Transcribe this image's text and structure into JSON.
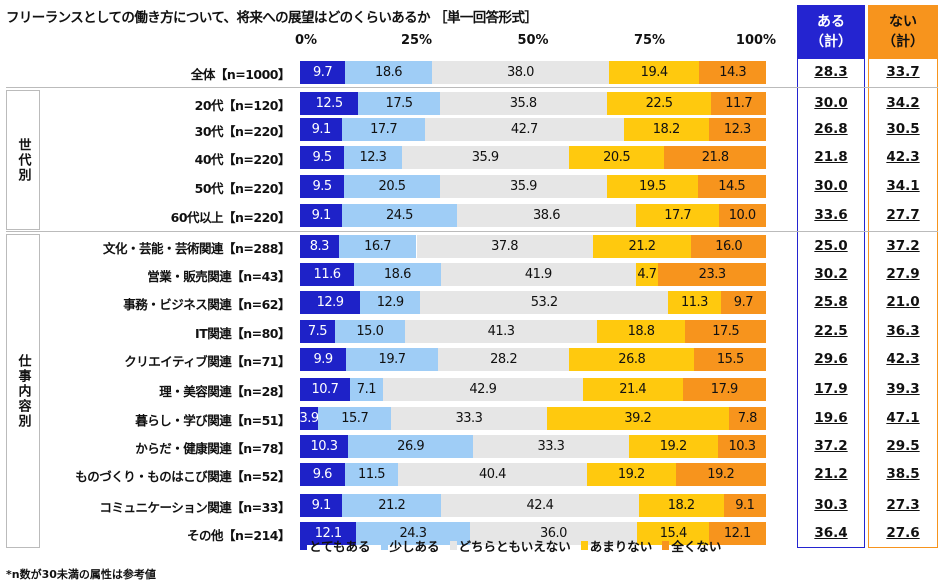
{
  "chart_data": {
    "type": "bar",
    "orientation": "horizontal-stacked-100",
    "title": "フリーランスとしての働き方について、将来への展望はどのくらいあるか ［単一回答形式］",
    "x_ticks": [
      "0%",
      "25%",
      "50%",
      "75%",
      "100%"
    ],
    "xlim": [
      0,
      100
    ],
    "legend_position": "bottom",
    "series_names": [
      "とてもある",
      "少しある",
      "どちらともいえない",
      "あまりない",
      "全くない"
    ],
    "colors": [
      "#1e22c8",
      "#9fcdf6",
      "#e6e6e6",
      "#ffc90e",
      "#f7941d"
    ],
    "summary_headers": {
      "aru": [
        "ある",
        "（計）"
      ],
      "nai": [
        "ない",
        "（計）"
      ]
    },
    "summary_colors": {
      "aru": "#2424d0",
      "nai": "#f7941d"
    },
    "groups": [
      {
        "label": "世代別",
        "chars": [
          "世",
          "代",
          "別"
        ]
      },
      {
        "label": "仕事内容別",
        "chars": [
          "仕",
          "事",
          "内",
          "容",
          "別"
        ]
      }
    ],
    "rows": [
      {
        "label": "全体【n=1000】",
        "values": [
          9.7,
          18.6,
          38.0,
          19.4,
          14.3
        ],
        "aru": "28.3",
        "nai": "33.7"
      },
      {
        "label": "20代【n=120】",
        "values": [
          12.5,
          17.5,
          35.8,
          22.5,
          11.7
        ],
        "aru": "30.0",
        "nai": "34.2"
      },
      {
        "label": "30代【n=220】",
        "values": [
          9.1,
          17.7,
          42.7,
          18.2,
          12.3
        ],
        "aru": "26.8",
        "nai": "30.5"
      },
      {
        "label": "40代【n=220】",
        "values": [
          9.5,
          12.3,
          35.9,
          20.5,
          21.8
        ],
        "aru": "21.8",
        "nai": "42.3"
      },
      {
        "label": "50代【n=220】",
        "values": [
          9.5,
          20.5,
          35.9,
          19.5,
          14.5
        ],
        "aru": "30.0",
        "nai": "34.1"
      },
      {
        "label": "60代以上【n=220】",
        "values": [
          9.1,
          24.5,
          38.6,
          17.7,
          10.0
        ],
        "aru": "33.6",
        "nai": "27.7"
      },
      {
        "label": "文化・芸能・芸術関連【n=288】",
        "values": [
          8.3,
          16.7,
          37.8,
          21.2,
          16.0
        ],
        "aru": "25.0",
        "nai": "37.2"
      },
      {
        "label": "営業・販売関連【n=43】",
        "values": [
          11.6,
          18.6,
          41.9,
          4.7,
          23.3
        ],
        "aru": "30.2",
        "nai": "27.9"
      },
      {
        "label": "事務・ビジネス関連【n=62】",
        "values": [
          12.9,
          12.9,
          53.2,
          11.3,
          9.7
        ],
        "aru": "25.8",
        "nai": "21.0"
      },
      {
        "label": "IT関連【n=80】",
        "values": [
          7.5,
          15.0,
          41.3,
          18.8,
          17.5
        ],
        "aru": "22.5",
        "nai": "36.3"
      },
      {
        "label": "クリエイティブ関連【n=71】",
        "values": [
          9.9,
          19.7,
          28.2,
          26.8,
          15.5
        ],
        "aru": "29.6",
        "nai": "42.3"
      },
      {
        "label": "理・美容関連【n=28】",
        "values": [
          10.7,
          7.1,
          42.9,
          21.4,
          17.9
        ],
        "aru": "17.9",
        "nai": "39.3"
      },
      {
        "label": "暮らし・学び関連【n=51】",
        "values": [
          3.9,
          15.7,
          33.3,
          39.2,
          7.8
        ],
        "aru": "19.6",
        "nai": "47.1"
      },
      {
        "label": "からだ・健康関連【n=78】",
        "values": [
          10.3,
          26.9,
          33.3,
          19.2,
          10.3
        ],
        "aru": "37.2",
        "nai": "29.5"
      },
      {
        "label": "ものづくり・ものはこび関連【n=52】",
        "values": [
          9.6,
          11.5,
          40.4,
          19.2,
          19.2
        ],
        "aru": "21.2",
        "nai": "38.5"
      },
      {
        "label": "コミュニケーション関連【n=33】",
        "values": [
          9.1,
          21.2,
          42.4,
          18.2,
          9.1
        ],
        "aru": "30.3",
        "nai": "27.3"
      },
      {
        "label": "その他【n=214】",
        "values": [
          12.1,
          24.3,
          36.0,
          15.4,
          12.1
        ],
        "aru": "36.4",
        "nai": "27.6"
      }
    ],
    "footnote": "*n数が30未満の属性は参考値"
  }
}
